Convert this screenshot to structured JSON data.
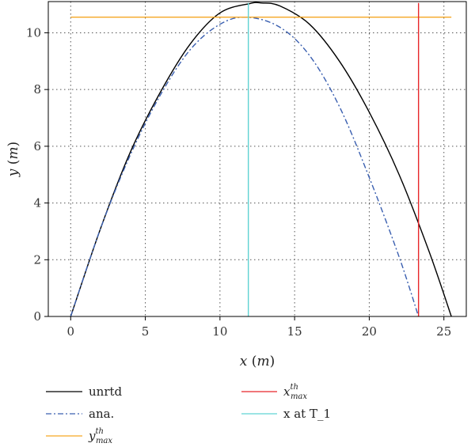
{
  "chart_data": {
    "type": "line",
    "xlabel_var": "x",
    "xlabel_unit": "m",
    "ylabel_var": "y",
    "ylabel_unit": "m",
    "xlim": [
      -1.5,
      26.5
    ],
    "ylim": [
      0,
      11.1
    ],
    "xticks": [
      0,
      5,
      10,
      15,
      20,
      25
    ],
    "yticks": [
      0,
      2,
      4,
      6,
      8,
      10
    ],
    "grid": true,
    "grid_style": "dotted",
    "legend_position": "bottom",
    "series": [
      {
        "name": "unrtd",
        "kind": "curve",
        "color": "#000000",
        "style": "solid",
        "x": [
          0,
          2,
          4,
          6,
          8,
          10,
          12,
          12.8,
          14,
          16,
          18,
          20,
          22,
          24,
          25.5
        ],
        "y": [
          0,
          3.1,
          5.8,
          7.9,
          9.6,
          10.7,
          11.03,
          11.05,
          10.95,
          10.3,
          9.0,
          7.2,
          5.0,
          2.3,
          0
        ]
      },
      {
        "name": "ana.",
        "kind": "curve",
        "color": "#3a5fb0",
        "style": "dashdot",
        "x": [
          0,
          2,
          4,
          6,
          8,
          10,
          11.8,
          14,
          16,
          18,
          20,
          22,
          23.3
        ],
        "y": [
          0,
          3.1,
          5.7,
          7.8,
          9.4,
          10.3,
          10.55,
          10.2,
          9.2,
          7.4,
          4.9,
          2.1,
          0
        ]
      },
      {
        "name_base": "y",
        "name_sup": "th",
        "name_sub": "max",
        "kind": "hline",
        "color": "#f5a623",
        "value": 10.55
      },
      {
        "name_base": "x",
        "name_sup": "th",
        "name_sub": "max",
        "kind": "vline",
        "color": "#e8262a",
        "value": 23.3
      },
      {
        "name": "x at T_1",
        "kind": "vline",
        "color": "#5fd3d3",
        "value": 11.9
      }
    ]
  }
}
